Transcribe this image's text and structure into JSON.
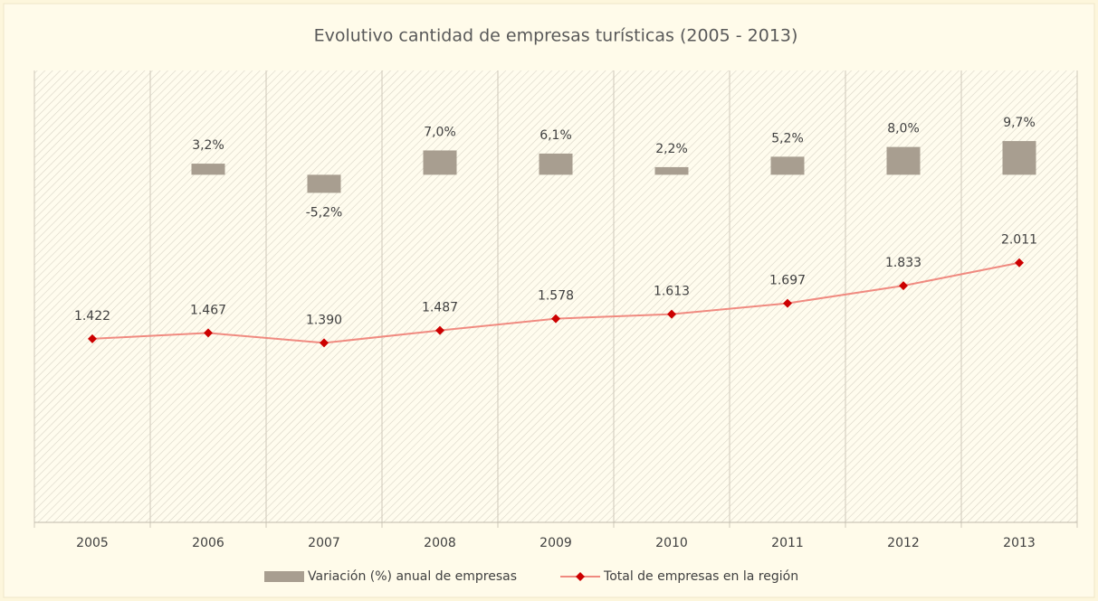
{
  "chart_data": {
    "type": "combo",
    "title": "Evolutivo cantidad de empresas turísticas (2005 - 2013)",
    "categories": [
      "2005",
      "2006",
      "2007",
      "2008",
      "2009",
      "2010",
      "2011",
      "2012",
      "2013"
    ],
    "ylim": [
      -100,
      30
    ],
    "y2lim": [
      0,
      3500
    ],
    "legend": "bottom",
    "series": [
      {
        "name": "Variación (%) anual de empresas",
        "type": "bar",
        "color": "#a89e90",
        "values": [
          null,
          3.2,
          -5.2,
          7.0,
          6.1,
          2.2,
          5.2,
          8.0,
          9.7
        ],
        "value_labels": [
          null,
          "3,2%",
          "-5,2%",
          "7,0%",
          "6,1%",
          "2,2%",
          "5,2%",
          "8,0%",
          "9,7%"
        ]
      },
      {
        "name": "Total de empresas en la región",
        "type": "line",
        "axis": "y2",
        "color": "#f08a80",
        "marker_color": "#cc0000",
        "values": [
          1422,
          1467,
          1390,
          1487,
          1578,
          1613,
          1697,
          1833,
          2011
        ],
        "value_labels": [
          "1.422",
          "1.467",
          "1.390",
          "1.487",
          "1.578",
          "1.613",
          "1.697",
          "1.833",
          "2.011"
        ]
      }
    ]
  }
}
